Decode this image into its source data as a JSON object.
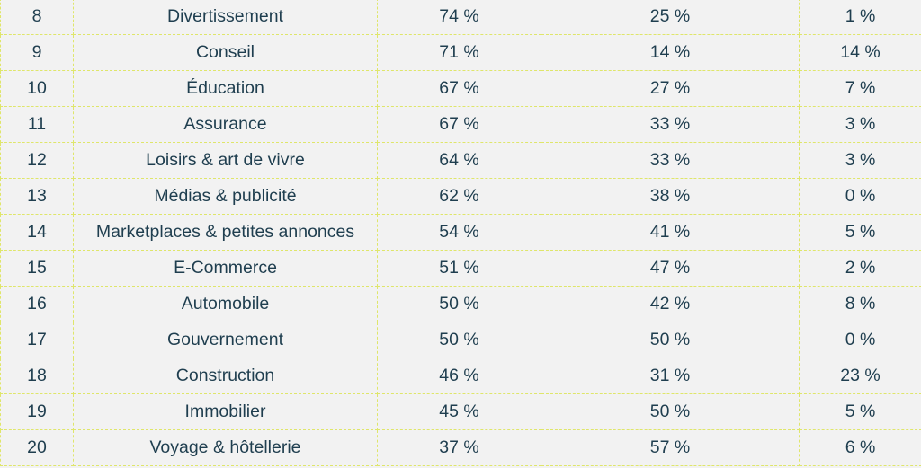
{
  "table": {
    "rows": [
      {
        "rank": "8",
        "sector": "Divertissement",
        "col1": "74 %",
        "col2": "25 %",
        "col3": "1 %"
      },
      {
        "rank": "9",
        "sector": "Conseil",
        "col1": "71 %",
        "col2": "14 %",
        "col3": "14 %"
      },
      {
        "rank": "10",
        "sector": "Éducation",
        "col1": "67 %",
        "col2": "27 %",
        "col3": "7 %"
      },
      {
        "rank": "11",
        "sector": "Assurance",
        "col1": "67 %",
        "col2": "33 %",
        "col3": "3 %"
      },
      {
        "rank": "12",
        "sector": "Loisirs & art de vivre",
        "col1": "64 %",
        "col2": "33 %",
        "col3": "3 %"
      },
      {
        "rank": "13",
        "sector": "Médias & publicité",
        "col1": "62 %",
        "col2": "38 %",
        "col3": "0 %"
      },
      {
        "rank": "14",
        "sector": "Marketplaces & petites annonces",
        "col1": "54 %",
        "col2": "41 %",
        "col3": "5 %"
      },
      {
        "rank": "15",
        "sector": "E-Commerce",
        "col1": "51 %",
        "col2": "47 %",
        "col3": "2 %"
      },
      {
        "rank": "16",
        "sector": "Automobile",
        "col1": "50 %",
        "col2": "42 %",
        "col3": "8 %"
      },
      {
        "rank": "17",
        "sector": "Gouvernement",
        "col1": "50 %",
        "col2": "50 %",
        "col3": "0 %"
      },
      {
        "rank": "18",
        "sector": "Construction",
        "col1": "46 %",
        "col2": "31 %",
        "col3": "23 %"
      },
      {
        "rank": "19",
        "sector": "Immobilier",
        "col1": "45 %",
        "col2": "50 %",
        "col3": "5 %"
      },
      {
        "rank": "20",
        "sector": "Voyage & hôtellerie",
        "col1": "37 %",
        "col2": "57 %",
        "col3": "6 %"
      }
    ]
  }
}
